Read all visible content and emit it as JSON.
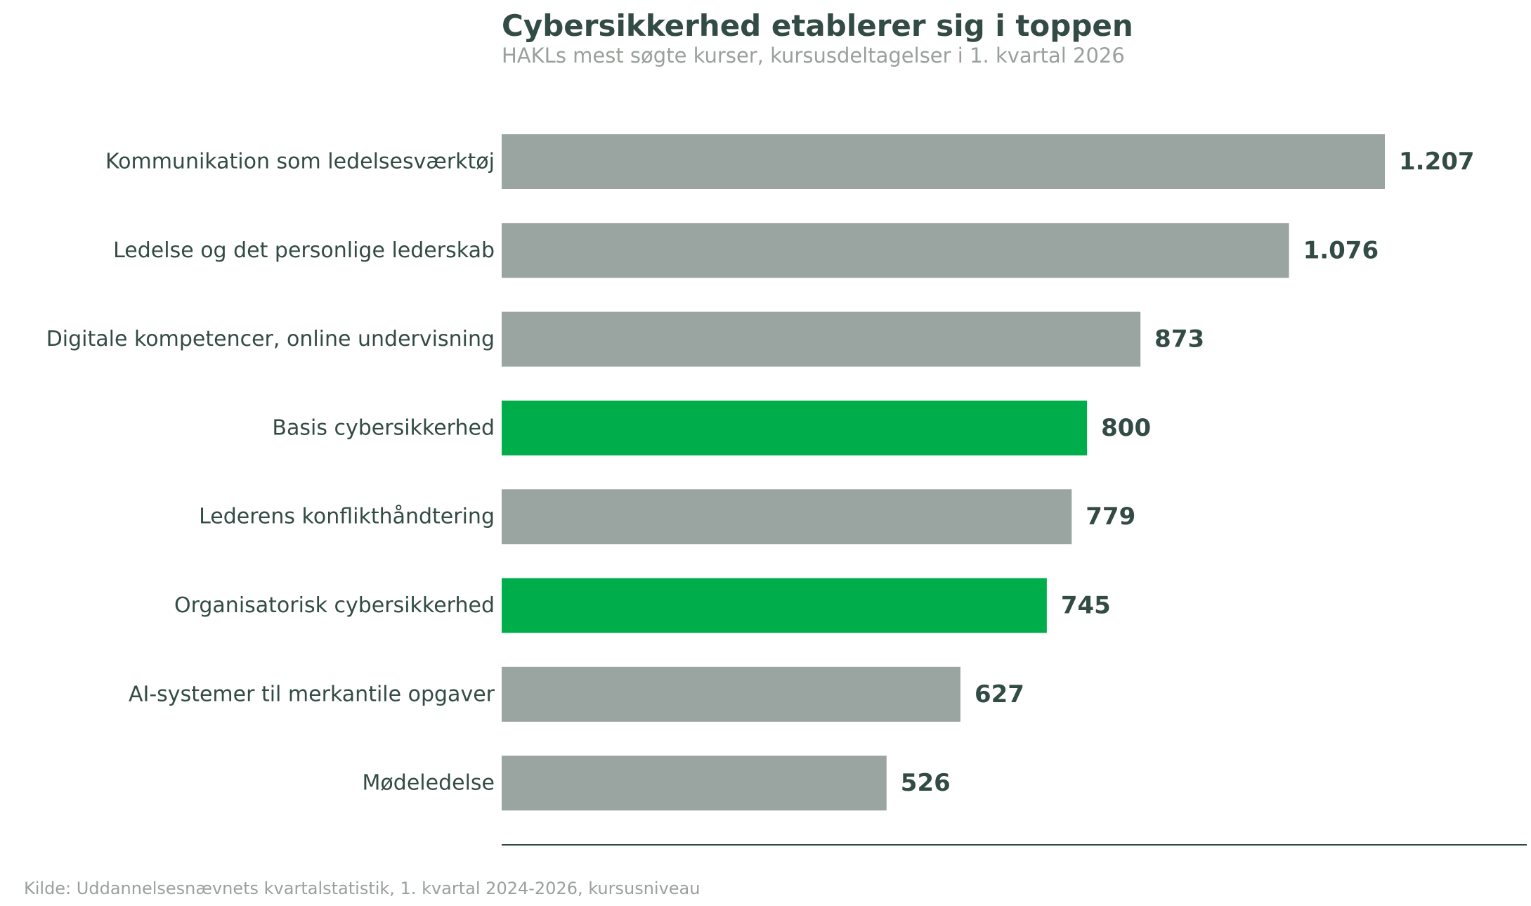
{
  "colors": {
    "text_dark": "#334b45",
    "text_muted": "#9aa09c",
    "bar_default": "#9aa5a1",
    "bar_highlight": "#00ad4b",
    "axis_line": "#334b45"
  },
  "chart_data": {
    "type": "bar",
    "orientation": "horizontal",
    "title": "Cybersikkerhed etablerer sig i toppen",
    "subtitle": "HAKLs mest søgte kurser, kursusdeltagelser i 1. kvartal 2026",
    "categories": [
      "Kommunikation som ledelsesværktøj",
      "Ledelse og det personlige lederskab",
      "Digitale kompetencer, online undervisning",
      "Basis cybersikkerhed",
      "Lederens konflikthåndtering",
      "Organisatorisk cybersikkerhed",
      "AI-systemer til merkantile opgaver",
      "Mødeledelse"
    ],
    "values": [
      1207,
      1076,
      873,
      800,
      779,
      745,
      627,
      526
    ],
    "value_labels": [
      "1.207",
      "1.076",
      "873",
      "800",
      "779",
      "745",
      "627",
      "526"
    ],
    "highlighted": [
      false,
      false,
      false,
      true,
      false,
      true,
      false,
      false
    ],
    "xlim": [
      0,
      1400
    ],
    "grid": false,
    "legend": "none",
    "source": "Kilde: Uddannelsesnævnets kvartalstatistik, 1. kvartal 2024-2026, kursusniveau"
  }
}
